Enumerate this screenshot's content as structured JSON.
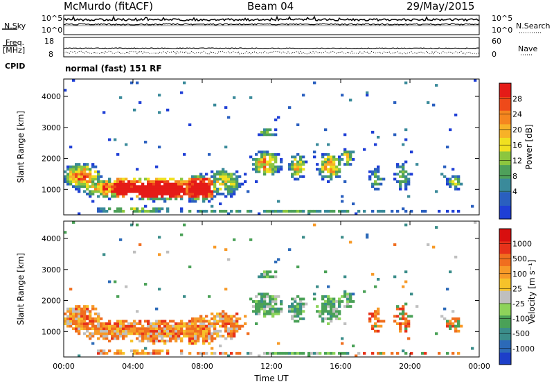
{
  "header": {
    "title": "McMurdo (fitACF)",
    "beam": "Beam 04",
    "date": "29/May/2015"
  },
  "nsky_panel": {
    "left_label": "N.Sky",
    "right_label": "N.Search",
    "left_ticks": [
      "10^5",
      "10^0"
    ],
    "right_ticks": [
      "10^5",
      "10^0"
    ]
  },
  "freq_panel": {
    "left_label": "Freq.",
    "left_unit": "[MHz]",
    "right_label": "Nave",
    "left_ticks": [
      "18",
      "8"
    ],
    "right_ticks": [
      "60",
      "0"
    ]
  },
  "cpid": {
    "label": "CPID",
    "mode": "normal (fast) 151 RF"
  },
  "chart_data": [
    {
      "type": "heatmap",
      "name": "power",
      "ylabel": "Slant Range [km]",
      "ylim": [
        180,
        4560
      ],
      "yticks": [
        "4000",
        "3000",
        "2000",
        "1000"
      ],
      "xlim_hours": [
        0,
        24
      ],
      "colorbar": {
        "label": "Power [dB]",
        "range": [
          0,
          32
        ],
        "ticks": [
          "28",
          "24",
          "20",
          "16",
          "12",
          "8",
          "4"
        ],
        "colors": [
          "#1f3fd6",
          "#2a5fbf",
          "#3a8a9a",
          "#4ea05a",
          "#8cc63f",
          "#f0e020",
          "#f7b227",
          "#f5861f",
          "#ee4a1a",
          "#e51b17"
        ]
      }
    },
    {
      "type": "heatmap",
      "name": "velocity",
      "ylabel": "Slant Range [km]",
      "ylim": [
        180,
        4560
      ],
      "yticks": [
        "4000",
        "3000",
        "2000",
        "1000"
      ],
      "xlim_hours": [
        0,
        24
      ],
      "xlabel": "Time UT",
      "xticks": [
        "00:00",
        "04:00",
        "08:00",
        "12:00",
        "16:00",
        "20:00",
        "00:00"
      ],
      "colorbar": {
        "label": "Velocity [m s⁻¹]",
        "ticks": [
          "1000",
          "500",
          "100",
          "25",
          "-25",
          "-100",
          "-500",
          "-1000"
        ],
        "colors": [
          "#1d3fc9",
          "#2c6ab8",
          "#3b8d8a",
          "#4aa157",
          "#8dd35a",
          "#bfbfbf",
          "#f6c22a",
          "#f79a28",
          "#f06e1f",
          "#e7321a",
          "#d80f0f"
        ]
      }
    }
  ]
}
